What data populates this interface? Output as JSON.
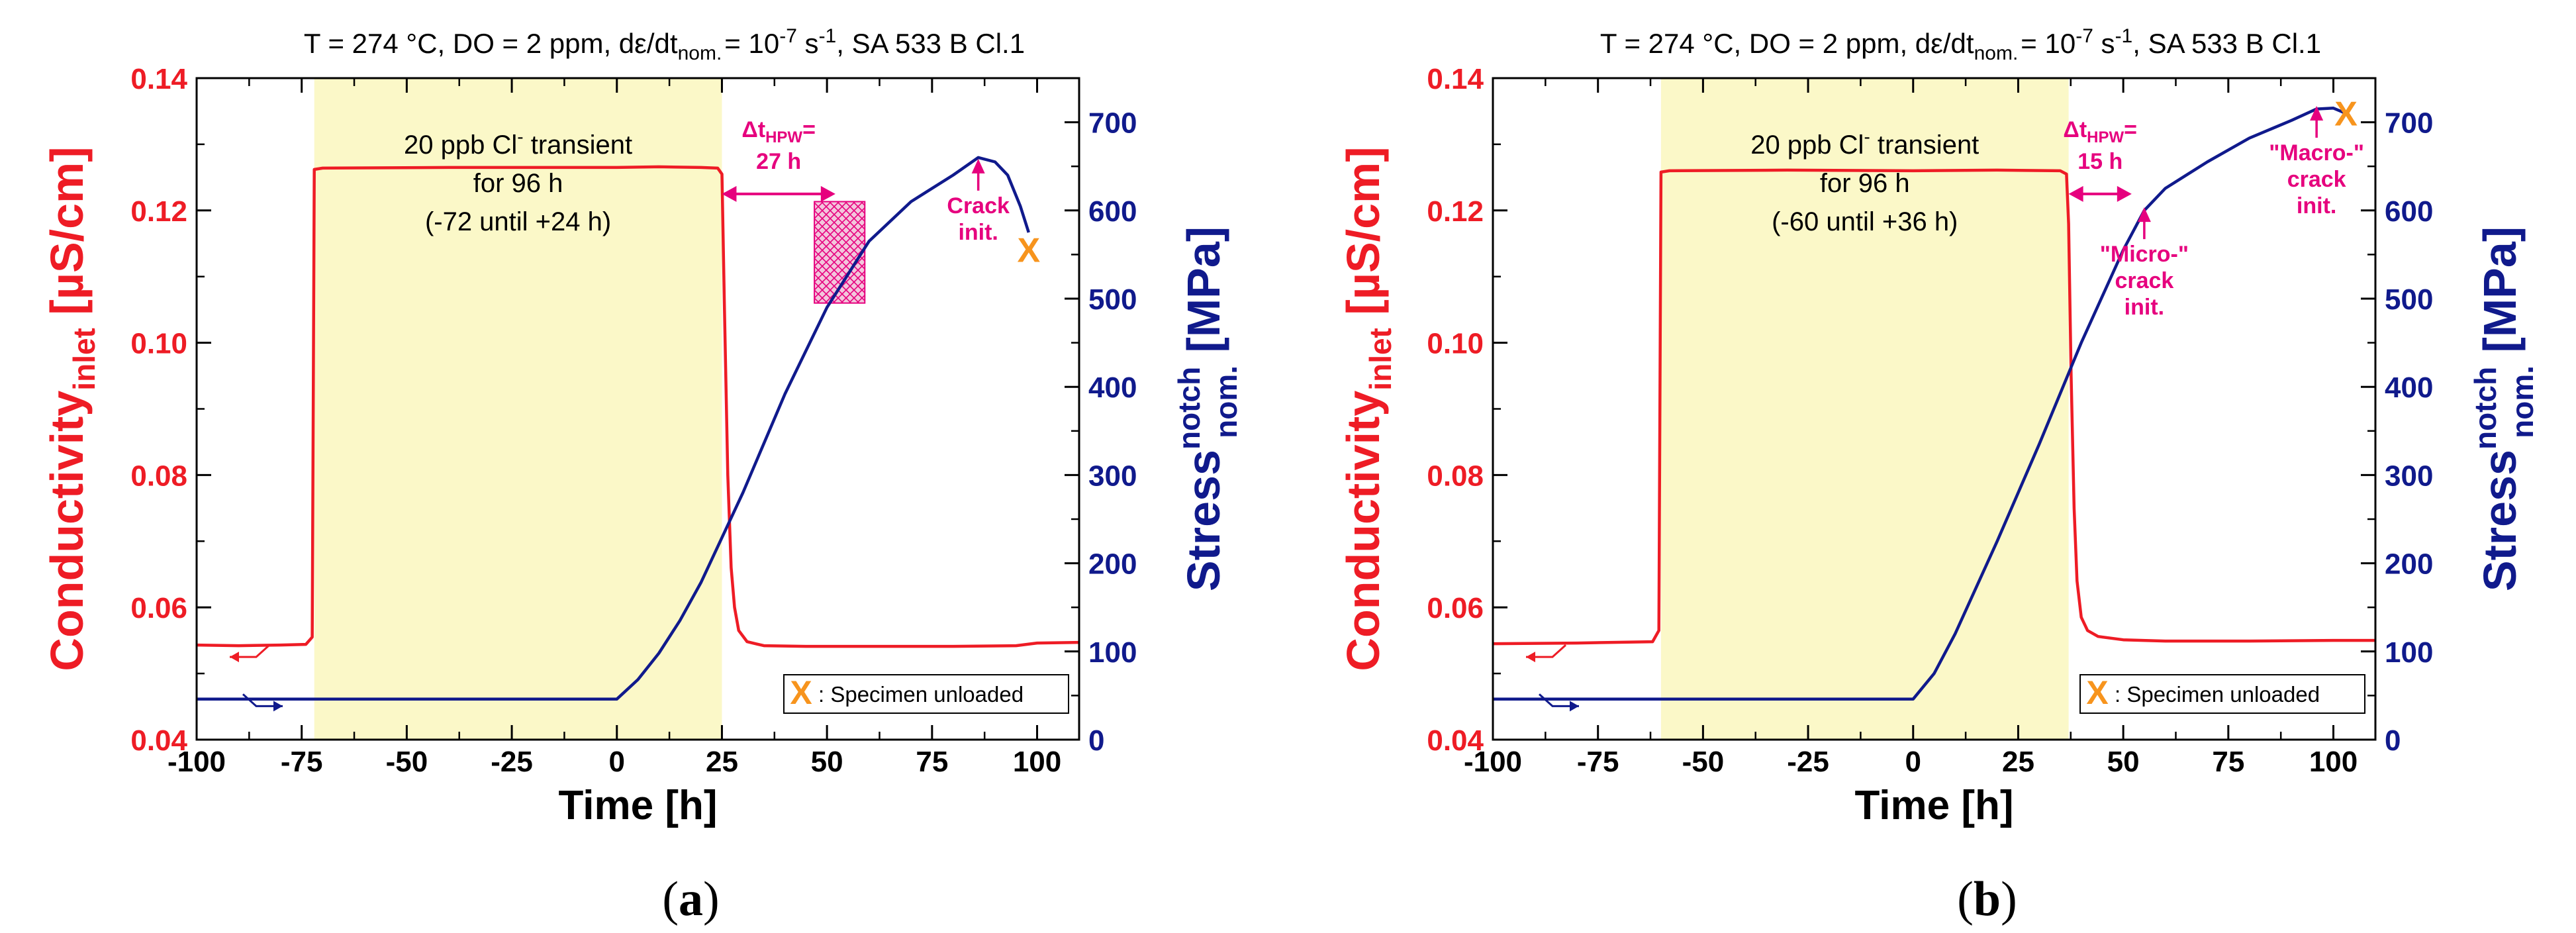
{
  "colors": {
    "conductivity": "#ee1c25",
    "stress": "#101a8c",
    "shade": "#fbf8c8",
    "annotation": "#e6007e",
    "unload": "#f7941d",
    "frame": "#000000"
  },
  "chart_data": [
    {
      "type": "line",
      "panel_label": "(a)",
      "title": "T = 274 °C, DO = 2 ppm, dε/dt_nom. = 10^-7 s^-1, SA 533 B Cl.1",
      "xlabel": "Time [h]",
      "ylabel_left": "Conductivity_inlet [µS/cm]",
      "ylabel_right": "Stress_nom.^notch [MPa]",
      "xlim": [
        -100,
        110
      ],
      "ylim_left": [
        0.04,
        0.14
      ],
      "ylim_right": [
        0,
        750
      ],
      "x_ticks": [
        "-100",
        "-75",
        "-50",
        "-25",
        "0",
        "25",
        "50",
        "75",
        "100"
      ],
      "y_left_ticks": [
        "0.04",
        "0.06",
        "0.08",
        "0.10",
        "0.12",
        "0.14"
      ],
      "y_right_ticks": [
        "0",
        "100",
        "200",
        "300",
        "400",
        "500",
        "600",
        "700"
      ],
      "shaded_interval": [
        -72,
        25
      ],
      "transient_text": [
        "20 ppb Cl⁻ transient",
        "for 96 h",
        "(-72 until +24 h)"
      ],
      "delta_text": [
        "Δt_HPW=",
        "27 h"
      ],
      "delta_range": [
        25,
        52
      ],
      "delta_y": 0.1225,
      "crack_labels": [
        {
          "lines": [
            "Crack",
            "init."
          ],
          "x": 86,
          "value": 660
        }
      ],
      "hatched_box": {
        "x": [
          47,
          59
        ],
        "stress": [
          495,
          610
        ]
      },
      "unload_marker": {
        "x": 98,
        "value": 555
      },
      "legend_text": ": Specimen unloaded",
      "series": [
        {
          "name": "Conductivity_inlet",
          "axis": "left",
          "x": [
            -100,
            -90,
            -80,
            -74,
            -72.5,
            -72,
            -70,
            -40,
            0,
            10,
            20,
            24,
            25,
            25.6,
            26.4,
            27.2,
            28,
            29,
            31,
            35,
            45,
            60,
            80,
            95,
            100,
            110
          ],
          "values": [
            0.0543,
            0.0542,
            0.0543,
            0.0544,
            0.0555,
            0.1262,
            0.1264,
            0.1265,
            0.1265,
            0.1266,
            0.1265,
            0.1264,
            0.1255,
            0.105,
            0.08,
            0.066,
            0.06,
            0.0565,
            0.0548,
            0.0542,
            0.0541,
            0.0541,
            0.0541,
            0.0542,
            0.0546,
            0.0547
          ]
        },
        {
          "name": "Stress_nom.^notch",
          "axis": "right",
          "x": [
            -100,
            -50,
            -1,
            0,
            5,
            10,
            15,
            20,
            30,
            40,
            50,
            60,
            70,
            80,
            86,
            90,
            93,
            96,
            98
          ],
          "values": [
            46,
            46,
            46,
            46,
            68,
            98,
            135,
            178,
            280,
            392,
            490,
            565,
            610,
            640,
            660,
            655,
            640,
            605,
            575
          ]
        }
      ]
    },
    {
      "type": "line",
      "panel_label": "(b)",
      "title": "T = 274 °C, DO = 2 ppm, dε/dt_nom. = 10^-7 s^-1, SA 533 B Cl.1",
      "xlabel": "Time [h]",
      "ylabel_left": "Conductivity_inlet [µS/cm]",
      "ylabel_right": "Stress_nom.^notch [MPa]",
      "xlim": [
        -100,
        110
      ],
      "ylim_left": [
        0.04,
        0.14
      ],
      "ylim_right": [
        0,
        750
      ],
      "x_ticks": [
        "-100",
        "-75",
        "-50",
        "-25",
        "0",
        "25",
        "50",
        "75",
        "100"
      ],
      "y_left_ticks": [
        "0.04",
        "0.06",
        "0.08",
        "0.10",
        "0.12",
        "0.14"
      ],
      "y_right_ticks": [
        "0",
        "100",
        "200",
        "300",
        "400",
        "500",
        "600",
        "700"
      ],
      "shaded_interval": [
        -60,
        37
      ],
      "transient_text": [
        "20 ppb Cl⁻ transient",
        "for 96 h",
        "(-60 until +36 h)"
      ],
      "delta_text": [
        "Δt_HPW=",
        "15 h"
      ],
      "delta_range": [
        37,
        52
      ],
      "delta_y": 0.1225,
      "crack_labels": [
        {
          "lines": [
            "\"Micro-\"",
            "crack",
            "init."
          ],
          "x": 55,
          "value": 605
        },
        {
          "lines": [
            "\"Macro-\"",
            "crack",
            "init."
          ],
          "x": 96,
          "value": 720
        }
      ],
      "hatched_box": null,
      "unload_marker": {
        "x": 103,
        "value": 710
      },
      "legend_text": ": Specimen unloaded",
      "series": [
        {
          "name": "Conductivity_inlet",
          "axis": "left",
          "x": [
            -100,
            -80,
            -62,
            -60.5,
            -60,
            -58,
            -30,
            0,
            20,
            35,
            36.5,
            37,
            37.6,
            38.3,
            39,
            40,
            41.5,
            44,
            50,
            60,
            80,
            100,
            110
          ],
          "values": [
            0.0545,
            0.0546,
            0.0548,
            0.0565,
            0.1258,
            0.126,
            0.1261,
            0.126,
            0.1261,
            0.126,
            0.1255,
            0.118,
            0.095,
            0.075,
            0.064,
            0.0585,
            0.0565,
            0.0556,
            0.0551,
            0.0549,
            0.0549,
            0.055,
            0.055
          ]
        },
        {
          "name": "Stress_nom.^notch",
          "axis": "right",
          "x": [
            -100,
            -50,
            -1,
            0,
            5,
            10,
            20,
            30,
            40,
            50,
            55,
            60,
            70,
            80,
            90,
            96,
            100,
            103
          ],
          "values": [
            46,
            46,
            46,
            46,
            75,
            120,
            225,
            335,
            450,
            555,
            600,
            625,
            655,
            682,
            702,
            715,
            716,
            710
          ]
        }
      ]
    }
  ]
}
